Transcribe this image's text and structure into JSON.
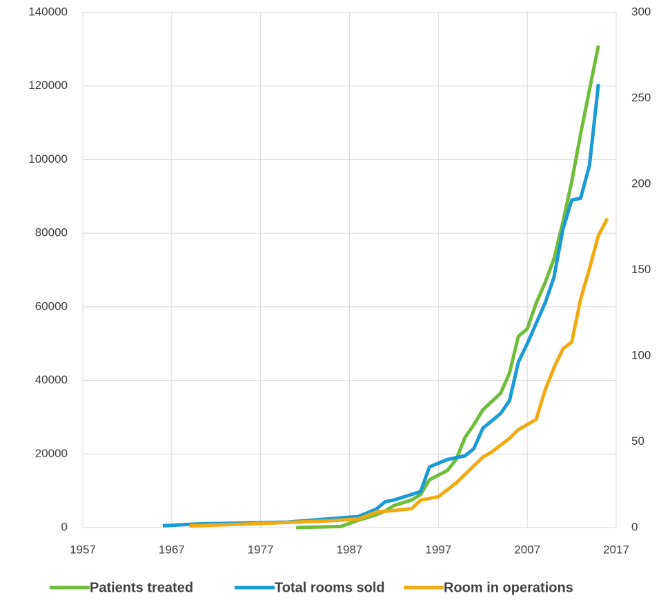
{
  "chart_data": {
    "type": "line",
    "xlim": [
      1957,
      2017
    ],
    "xticks": [
      1957,
      1967,
      1977,
      1987,
      1997,
      2007,
      2017
    ],
    "ylim": [
      0,
      140000
    ],
    "yticks": [
      0,
      20000,
      40000,
      60000,
      80000,
      100000,
      120000,
      140000
    ],
    "y2lim": [
      0,
      300
    ],
    "y2ticks": [
      0,
      50,
      100,
      150,
      200,
      250,
      300
    ],
    "grid": true,
    "legend": "bottom",
    "series": [
      {
        "name": "Patients treated",
        "color": "#6fbe3a",
        "x": [
          1981,
          1986,
          1988,
          1990,
          1991,
          1992,
          1994,
          1995,
          1996,
          1998,
          1999,
          2000,
          2001,
          2002,
          2004,
          2005,
          2006,
          2007,
          2008,
          2009,
          2010,
          2011,
          2012,
          2013,
          2014,
          2015
        ],
        "values": [
          0,
          300,
          2000,
          3500,
          4500,
          6000,
          7500,
          9000,
          13000,
          15500,
          18500,
          24500,
          28000,
          32000,
          36500,
          42000,
          52000,
          54000,
          61000,
          66500,
          73000,
          83000,
          94000,
          107000,
          119000,
          131000
        ]
      },
      {
        "name": "Total rooms sold",
        "color": "#1a9ad6",
        "x": [
          1966,
          1970,
          1980,
          1988,
          1990,
          1991,
          1992,
          1994,
          1995,
          1996,
          1998,
          1999,
          2000,
          2001,
          2002,
          2004,
          2005,
          2006,
          2007,
          2009,
          2010,
          2011,
          2012,
          2013,
          2014,
          2015
        ],
        "values": [
          500,
          1000,
          1500,
          3000,
          5000,
          7000,
          7500,
          9000,
          9800,
          16500,
          18500,
          19000,
          19500,
          21500,
          27000,
          31000,
          34500,
          45000,
          50000,
          61000,
          68000,
          81000,
          89000,
          89500,
          98500,
          120500
        ]
      },
      {
        "name": "Room in operations",
        "color": "#f0aa12",
        "axis": "y2",
        "x": [
          1969,
          1975,
          1980,
          1985,
          1988,
          1990,
          1992,
          1994,
          1995,
          1996,
          1997,
          1998,
          1999,
          2000,
          2001,
          2002,
          2003,
          2004,
          2005,
          2006,
          2007,
          2008,
          2009,
          2010,
          2011,
          2012,
          2013,
          2014,
          2015,
          2016
        ],
        "values": [
          1,
          2,
          3,
          4,
          5,
          9,
          10,
          11,
          16,
          17,
          18,
          22,
          26,
          31,
          36,
          41,
          44,
          48,
          52,
          57,
          60,
          63,
          80,
          93,
          104,
          108,
          133,
          151,
          170,
          180
        ]
      }
    ]
  }
}
